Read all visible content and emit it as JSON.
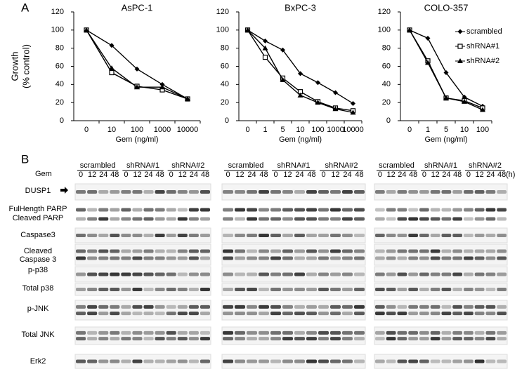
{
  "panels": [
    "A",
    "B"
  ],
  "chart_data": [
    {
      "type": "line",
      "title": "AsPC-1",
      "x_label": "Gem (ng/ml)",
      "y_label": [
        "Growth",
        "(% control)"
      ],
      "categories": [
        "0",
        "10",
        "100",
        "1000",
        "10000"
      ],
      "series": [
        {
          "marker": "diamond",
          "color": "#000000",
          "values": [
            100,
            83,
            57,
            40,
            24
          ]
        },
        {
          "marker": "square-open",
          "color": "#000000",
          "values": [
            100,
            53,
            38,
            34,
            24
          ]
        },
        {
          "marker": "triangle",
          "color": "#000000",
          "values": [
            100,
            58,
            37,
            37,
            24
          ]
        }
      ],
      "ylim": [
        0,
        120
      ],
      "yticks": [
        0,
        20,
        40,
        60,
        80,
        100,
        120
      ]
    },
    {
      "type": "line",
      "title": "BxPC-3",
      "x_label": "Gem (ng/ml)",
      "categories": [
        "0",
        "1",
        "5",
        "10",
        "100",
        "1000",
        "10000"
      ],
      "series": [
        {
          "marker": "diamond",
          "color": "#000000",
          "values": [
            100,
            88,
            78,
            52,
            42,
            31,
            19
          ]
        },
        {
          "marker": "square-open",
          "color": "#000000",
          "values": [
            100,
            70,
            47,
            32,
            21,
            14,
            11
          ]
        },
        {
          "marker": "triangle",
          "color": "#000000",
          "values": [
            100,
            80,
            45,
            28,
            20,
            13,
            9
          ]
        }
      ],
      "ylim": [
        0,
        120
      ],
      "yticks": [
        0,
        20,
        40,
        60,
        80,
        100,
        120
      ]
    },
    {
      "type": "line",
      "title": "COLO-357",
      "x_label": "Gem (ng/ml)",
      "categories": [
        "0",
        "1",
        "5",
        "10",
        "100"
      ],
      "series": [
        {
          "name": "scrambled",
          "marker": "diamond",
          "color": "#000000",
          "values": [
            100,
            91,
            53,
            26,
            16
          ]
        },
        {
          "name": "shRNA#1",
          "marker": "square-open",
          "color": "#000000",
          "values": [
            100,
            66,
            25,
            22,
            14
          ]
        },
        {
          "name": "shRNA#2",
          "marker": "triangle",
          "color": "#000000",
          "values": [
            100,
            64,
            25,
            21,
            12
          ]
        }
      ],
      "ylim": [
        0,
        120
      ],
      "yticks": [
        0,
        20,
        40,
        60,
        80,
        100,
        120
      ],
      "legend": "upper right"
    }
  ],
  "blots": {
    "groups": [
      "scrambled",
      "shRNA#1",
      "shRNA#2"
    ],
    "gem_label": "Gem",
    "timepoints": [
      "0",
      "12",
      "24",
      "48"
    ],
    "unit": "(h)",
    "rows": [
      [
        "DUSP1"
      ],
      [
        "FulHength PARP"
      ],
      [
        "Cleaved PARP"
      ],
      [
        "Caspase3"
      ],
      [
        "Cleaved",
        "Caspase 3"
      ],
      [
        "p-p38"
      ],
      [
        "Total p38"
      ],
      [
        "p-JNK"
      ],
      [
        "Total JNK"
      ],
      [
        "Erk2"
      ]
    ]
  }
}
